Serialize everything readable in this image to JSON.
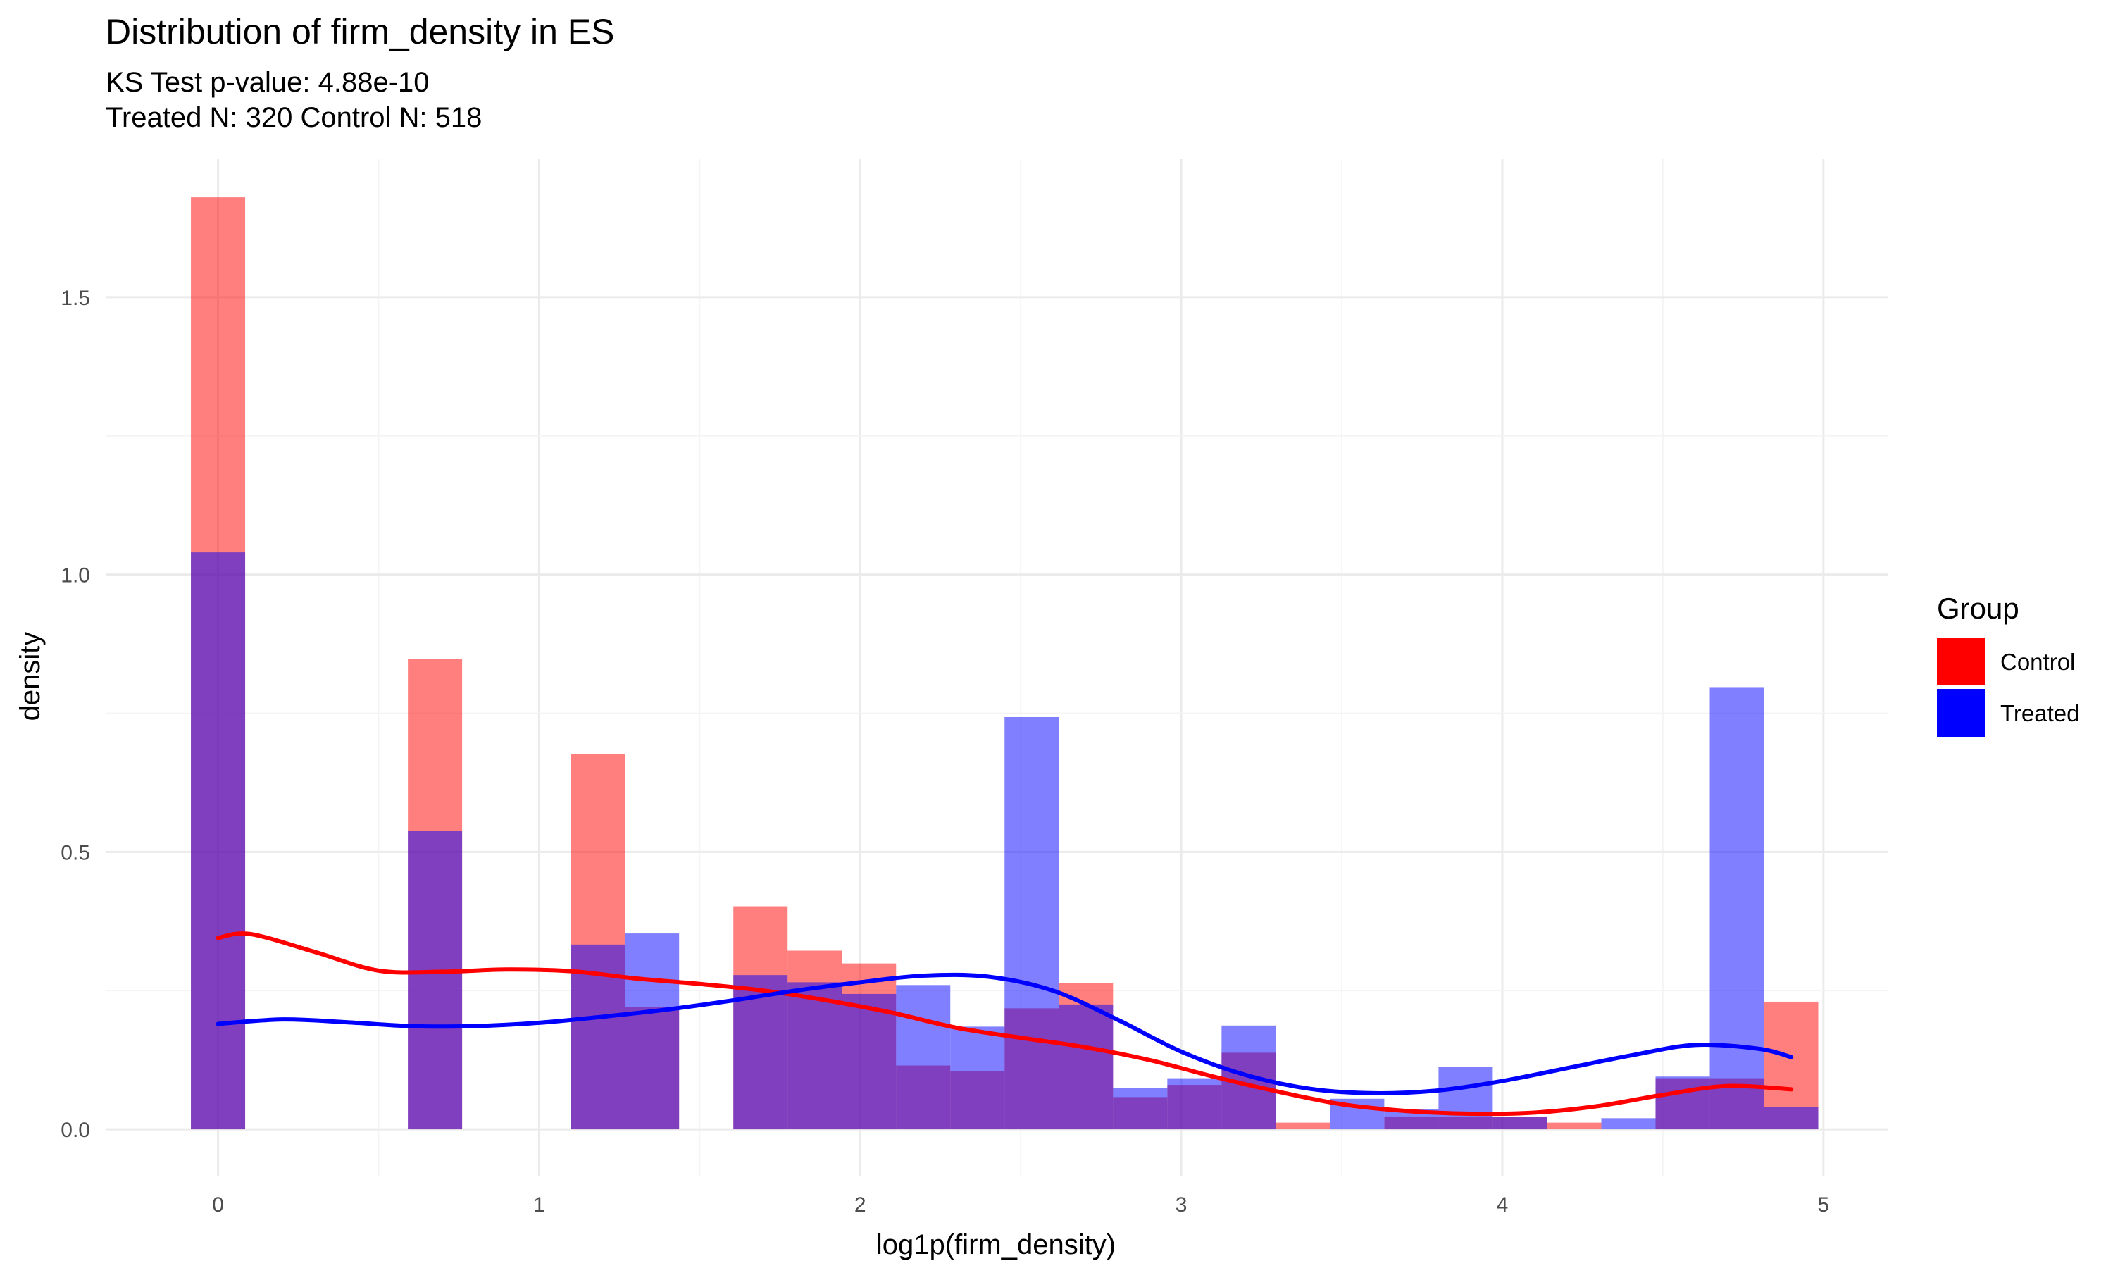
{
  "chart_data": {
    "type": "bar",
    "title": "Distribution of firm_density in ES",
    "subtitle_lines": [
      "KS Test p-value: 4.88e-10",
      "Treated N: 320 Control N: 518"
    ],
    "xlabel": "log1p(firm_density)",
    "ylabel": "density",
    "xlim": [
      -0.35,
      5.2
    ],
    "ylim": [
      -0.085,
      1.75
    ],
    "x_ticks": [
      0,
      1,
      2,
      3,
      4,
      5
    ],
    "x_tick_labels": [
      "0",
      "1",
      "2",
      "3",
      "4",
      "5"
    ],
    "y_ticks": [
      0,
      0.5,
      1,
      1.5
    ],
    "y_tick_labels": [
      "0.0",
      "0.5",
      "1.0",
      "1.5"
    ],
    "bin_width": 0.1689,
    "bin_centers": [
      0.0,
      0.1689,
      0.3379,
      0.5068,
      0.6758,
      0.8447,
      1.0137,
      1.1826,
      1.3516,
      1.5205,
      1.6895,
      1.8584,
      2.0274,
      2.1963,
      2.3653,
      2.5342,
      2.7032,
      2.8721,
      3.0411,
      3.21,
      3.379,
      3.5479,
      3.7169,
      3.8858,
      4.0548,
      4.2237,
      4.3927,
      4.5616,
      4.7306,
      4.8995
    ],
    "legend": {
      "title": "Group",
      "placement": "right"
    },
    "series": [
      {
        "name": "Control",
        "color": "#ff0000",
        "values": [
          1.68,
          0,
          0,
          0,
          0.848,
          0,
          0,
          0.676,
          0.221,
          0,
          0.402,
          0.322,
          0.299,
          0.115,
          0.105,
          0.218,
          0.264,
          0.058,
          0.08,
          0.138,
          0.012,
          0,
          0.023,
          0.023,
          0.023,
          0.012,
          0,
          0.092,
          0.092,
          0.23
        ],
        "density_curve_x": [
          0,
          0.1,
          0.3,
          0.5,
          0.7,
          0.9,
          1.1,
          1.3,
          1.5,
          1.7,
          1.9,
          2.1,
          2.3,
          2.5,
          2.7,
          2.9,
          3.1,
          3.3,
          3.5,
          3.7,
          3.9,
          4.1,
          4.3,
          4.5,
          4.7,
          4.9
        ],
        "density_curve_y": [
          0.345,
          0.352,
          0.32,
          0.286,
          0.284,
          0.288,
          0.285,
          0.272,
          0.262,
          0.25,
          0.232,
          0.21,
          0.183,
          0.165,
          0.148,
          0.125,
          0.095,
          0.068,
          0.045,
          0.033,
          0.028,
          0.03,
          0.042,
          0.062,
          0.078,
          0.072
        ]
      },
      {
        "name": "Treated",
        "color": "#0000ff",
        "values": [
          1.04,
          0,
          0,
          0,
          0.538,
          0,
          0,
          0.333,
          0.353,
          0,
          0.278,
          0.265,
          0.244,
          0.26,
          0.185,
          0.743,
          0.225,
          0.075,
          0.092,
          0.187,
          0,
          0.055,
          0.036,
          0.112,
          0.022,
          0,
          0.02,
          0.095,
          0.797,
          0.04
        ],
        "density_curve_x": [
          0,
          0.2,
          0.4,
          0.6,
          0.8,
          1.0,
          1.2,
          1.4,
          1.6,
          1.8,
          2.0,
          2.2,
          2.4,
          2.6,
          2.8,
          3.0,
          3.2,
          3.4,
          3.6,
          3.8,
          4.0,
          4.2,
          4.4,
          4.6,
          4.8,
          4.9
        ],
        "density_curve_y": [
          0.19,
          0.198,
          0.193,
          0.186,
          0.186,
          0.192,
          0.203,
          0.216,
          0.232,
          0.25,
          0.265,
          0.277,
          0.275,
          0.25,
          0.198,
          0.14,
          0.098,
          0.073,
          0.065,
          0.07,
          0.087,
          0.11,
          0.133,
          0.152,
          0.145,
          0.13
        ]
      }
    ]
  }
}
